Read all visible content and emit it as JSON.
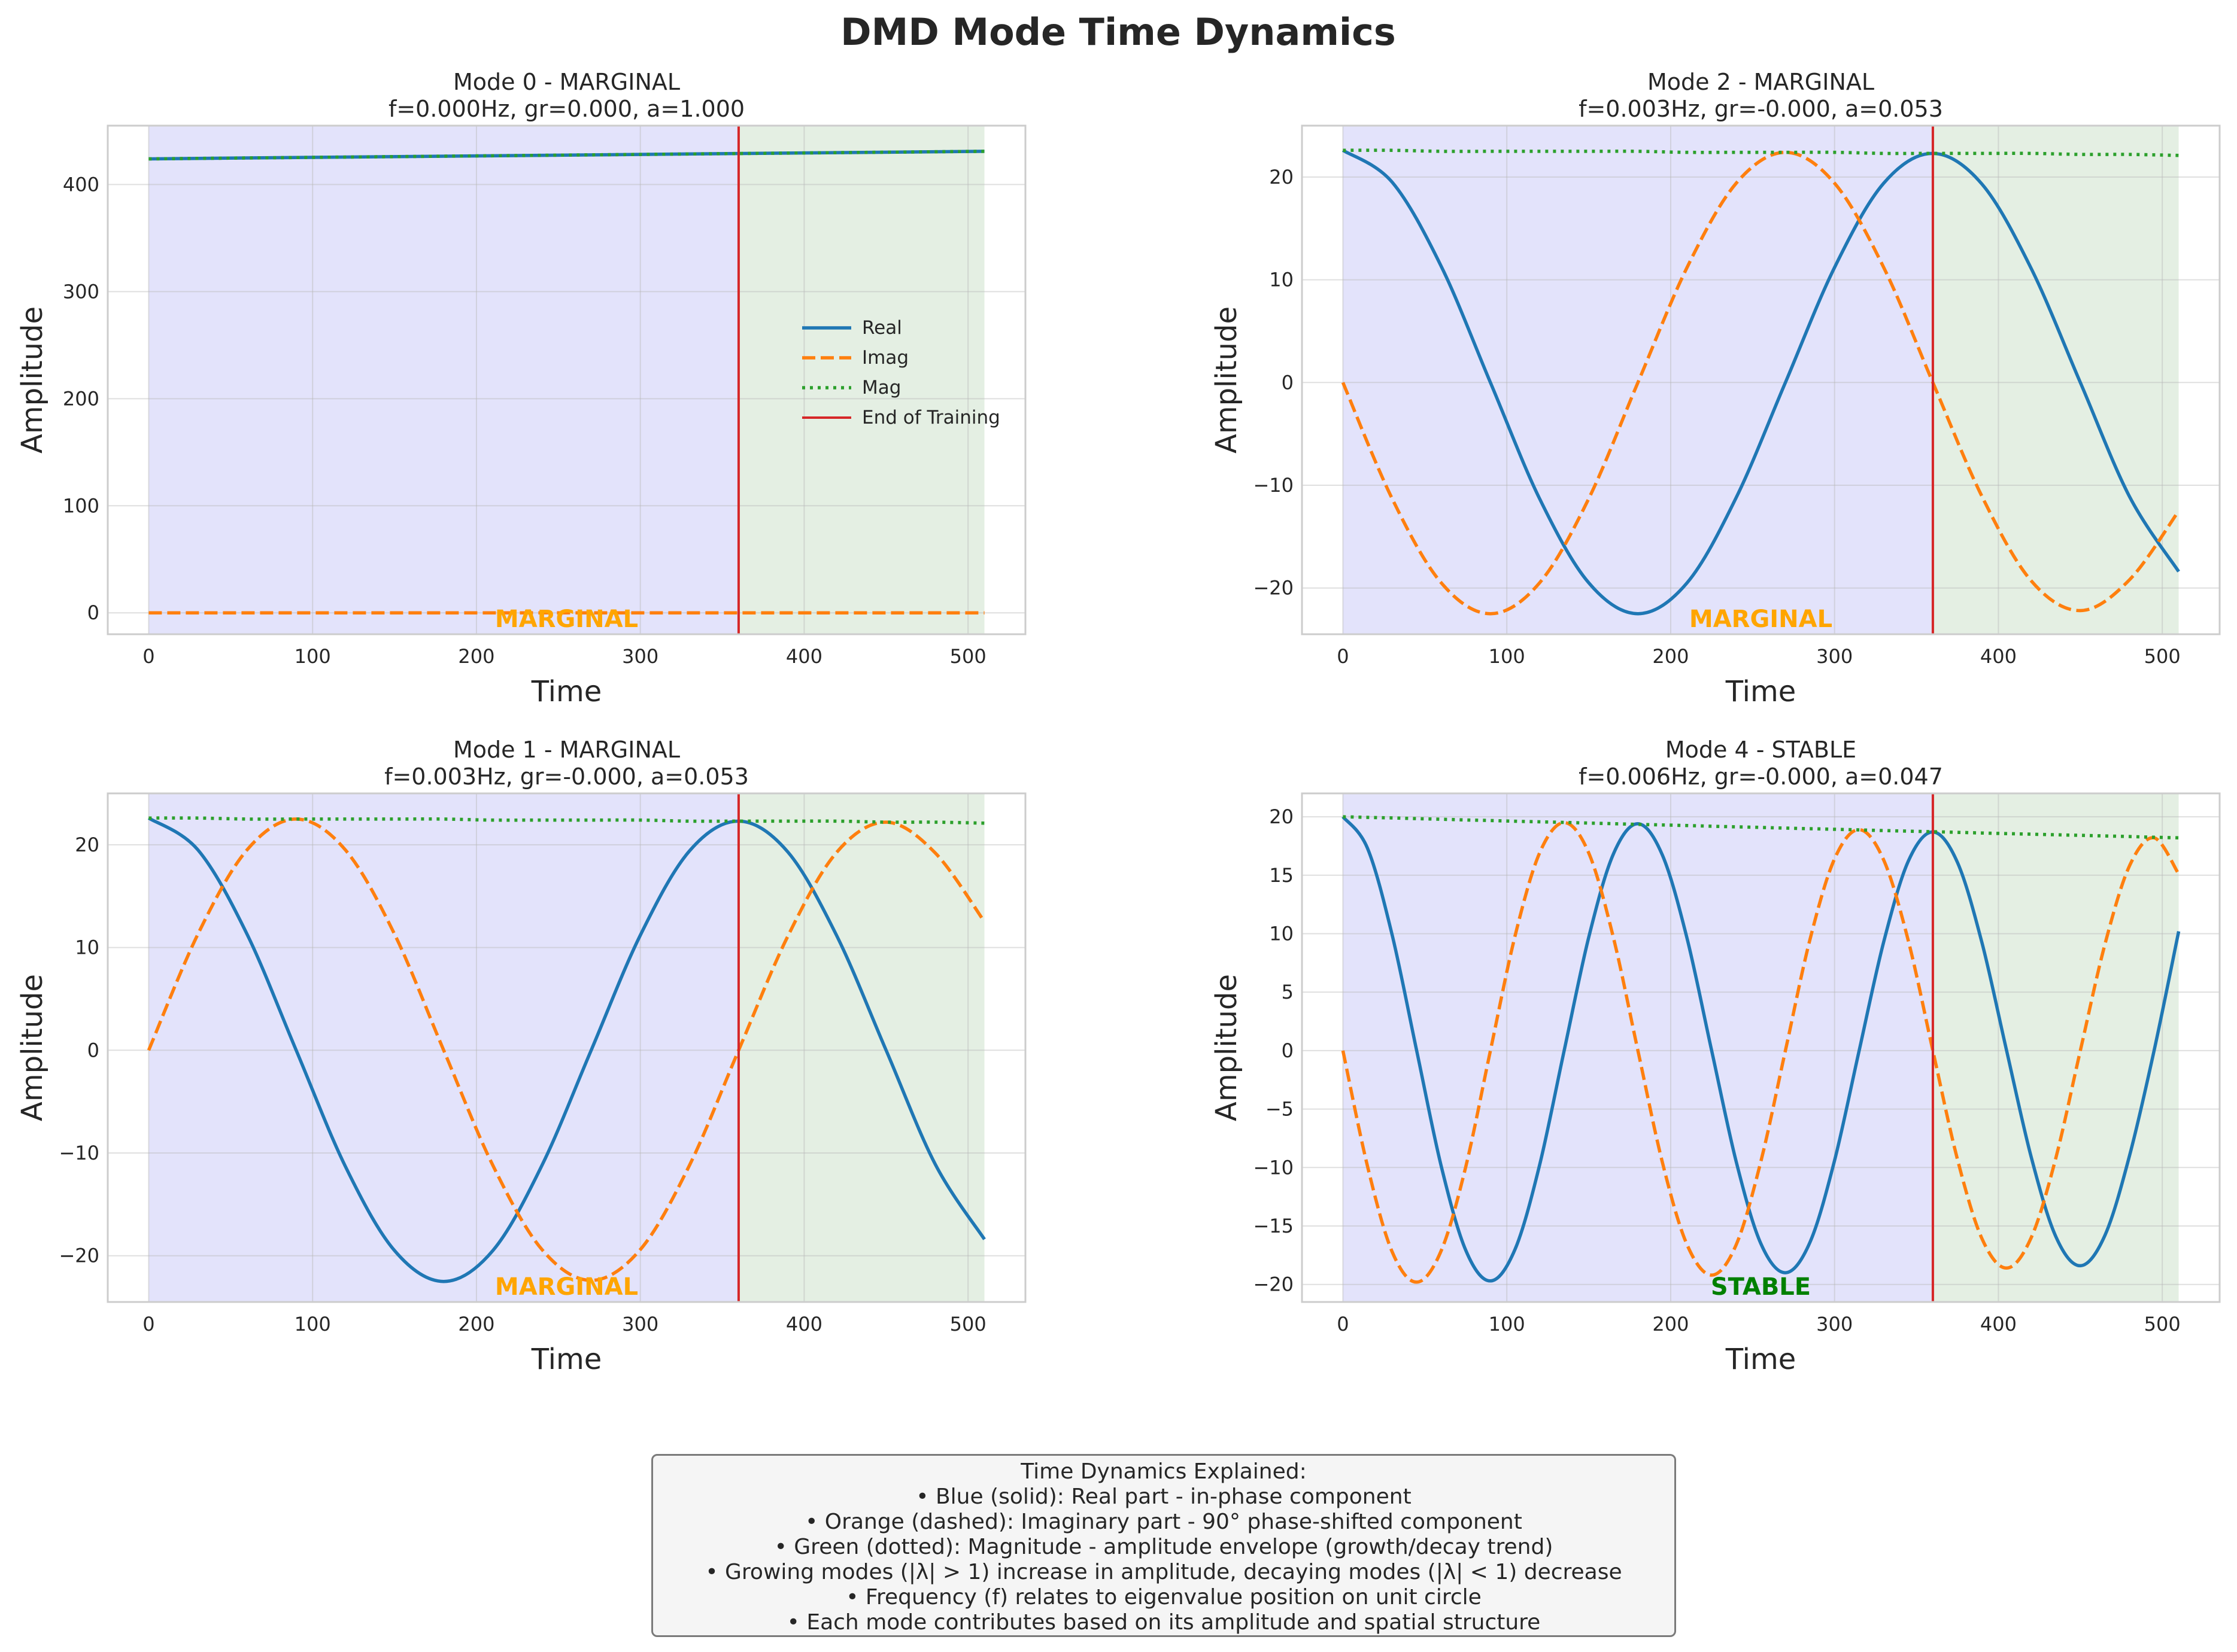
{
  "figure_title": "DMD Mode Time Dynamics",
  "colors": {
    "real": "#1f77b4",
    "imag": "#ff7f0e",
    "mag": "#2ca02c",
    "training_line": "#d62728",
    "train_region": "#e3e3fb",
    "forecast_region": "#e4efe3",
    "marginal_label": "#ffa500",
    "stable_label": "#008000"
  },
  "explanation": {
    "lines": [
      "Time Dynamics Explained:",
      "• Blue (solid): Real part - in-phase component",
      "• Orange (dashed): Imaginary part - 90° phase-shifted component",
      "• Green (dotted): Magnitude - amplitude envelope (growth/decay trend)",
      "• Growing modes (|λ| > 1) increase in amplitude, decaying modes (|λ| < 1) decrease",
      "• Frequency (f) relates to eigenvalue position on unit circle",
      "• Each mode contributes based on its amplitude and spatial structure"
    ]
  },
  "chart_data": [
    {
      "type": "line",
      "title": "Mode 0 - MARGINAL",
      "subtitle": "f=0.000Hz, gr=0.000, a=1.000",
      "xlabel": "Time",
      "ylabel": "Amplitude",
      "xlim": [
        -25,
        535
      ],
      "ylim": [
        -20,
        455
      ],
      "xticks": [
        0,
        100,
        200,
        300,
        400,
        500
      ],
      "yticks": [
        0,
        100,
        200,
        300,
        400
      ],
      "grid": true,
      "training_end": 360,
      "series_x": [
        0,
        510
      ],
      "series": [
        {
          "name": "Real",
          "style": "solid",
          "color": "#1f77b4",
          "values": [
            424,
            431
          ]
        },
        {
          "name": "Imag",
          "style": "dashed",
          "color": "#ff7f0e",
          "values": [
            0,
            0
          ]
        },
        {
          "name": "Mag",
          "style": "dotted",
          "color": "#2ca02c",
          "values": [
            424,
            431
          ]
        }
      ],
      "status_label": "MARGINAL",
      "legend": {
        "position": "center-right",
        "entries": [
          "Real",
          "Imag",
          "Mag",
          "End of Training"
        ]
      }
    },
    {
      "type": "line",
      "title": "Mode 2 - MARGINAL",
      "subtitle": "f=0.003Hz, gr=-0.000, a=0.053",
      "xlabel": "Time",
      "ylabel": "Amplitude",
      "xlim": [
        -25,
        535
      ],
      "ylim": [
        -24.5,
        25
      ],
      "xticks": [
        0,
        100,
        200,
        300,
        400,
        500
      ],
      "yticks": [
        -20,
        -10,
        0,
        10,
        20
      ],
      "grid": true,
      "training_end": 360,
      "series_x": [
        0,
        30,
        60,
        90,
        120,
        150,
        180,
        210,
        240,
        270,
        300,
        330,
        360,
        390,
        420,
        450,
        480,
        510
      ],
      "series": [
        {
          "name": "Real",
          "style": "solid",
          "color": "#1f77b4",
          "values": [
            22.6,
            19.5,
            11.3,
            0.0,
            -11.3,
            -19.5,
            -22.5,
            -19.5,
            -11.2,
            0.0,
            11.2,
            19.4,
            22.3,
            19.3,
            11.1,
            0.0,
            -11.1,
            -18.4
          ]
        },
        {
          "name": "Imag",
          "style": "dashed",
          "color": "#ff7f0e",
          "values": [
            0.0,
            -11.3,
            -19.5,
            -22.5,
            -19.5,
            -11.3,
            0.0,
            11.2,
            19.4,
            22.4,
            19.4,
            11.2,
            0.0,
            -11.1,
            -19.3,
            -22.2,
            -19.2,
            -12.5
          ]
        },
        {
          "name": "Mag",
          "style": "dotted",
          "color": "#2ca02c",
          "values": [
            22.6,
            22.6,
            22.5,
            22.5,
            22.5,
            22.5,
            22.5,
            22.4,
            22.4,
            22.4,
            22.4,
            22.3,
            22.3,
            22.3,
            22.3,
            22.2,
            22.2,
            22.1
          ]
        }
      ],
      "status_label": "MARGINAL"
    },
    {
      "type": "line",
      "title": "Mode 1 - MARGINAL",
      "subtitle": "f=0.003Hz, gr=-0.000, a=0.053",
      "xlabel": "Time",
      "ylabel": "Amplitude",
      "xlim": [
        -25,
        535
      ],
      "ylim": [
        -24.5,
        25
      ],
      "xticks": [
        0,
        100,
        200,
        300,
        400,
        500
      ],
      "yticks": [
        -20,
        -10,
        0,
        10,
        20
      ],
      "grid": true,
      "training_end": 360,
      "series_x": [
        0,
        30,
        60,
        90,
        120,
        150,
        180,
        210,
        240,
        270,
        300,
        330,
        360,
        390,
        420,
        450,
        480,
        510
      ],
      "series": [
        {
          "name": "Real",
          "style": "solid",
          "color": "#1f77b4",
          "values": [
            22.6,
            19.5,
            11.3,
            0.0,
            -11.3,
            -19.5,
            -22.5,
            -19.5,
            -11.2,
            0.0,
            11.2,
            19.4,
            22.3,
            19.3,
            11.1,
            0.0,
            -11.1,
            -18.4
          ]
        },
        {
          "name": "Imag",
          "style": "dashed",
          "color": "#ff7f0e",
          "values": [
            0.0,
            11.3,
            19.5,
            22.5,
            19.5,
            11.3,
            0.0,
            -11.2,
            -19.4,
            -22.4,
            -19.4,
            -11.2,
            0.0,
            11.1,
            19.3,
            22.2,
            19.2,
            12.5
          ]
        },
        {
          "name": "Mag",
          "style": "dotted",
          "color": "#2ca02c",
          "values": [
            22.6,
            22.6,
            22.5,
            22.5,
            22.5,
            22.5,
            22.5,
            22.4,
            22.4,
            22.4,
            22.4,
            22.3,
            22.3,
            22.3,
            22.3,
            22.2,
            22.2,
            22.1
          ]
        }
      ],
      "status_label": "MARGINAL"
    },
    {
      "type": "line",
      "title": "Mode 4 - STABLE",
      "subtitle": "f=0.006Hz, gr=-0.000, a=0.047",
      "xlabel": "Time",
      "ylabel": "Amplitude",
      "xlim": [
        -25,
        535
      ],
      "ylim": [
        -21.5,
        22
      ],
      "xticks": [
        0,
        100,
        200,
        300,
        400,
        500
      ],
      "yticks": [
        -20,
        -15,
        -10,
        -5,
        0,
        5,
        10,
        15,
        20
      ],
      "grid": true,
      "training_end": 360,
      "series_x": [
        0,
        15,
        30,
        45,
        60,
        75,
        90,
        105,
        120,
        135,
        150,
        165,
        180,
        195,
        210,
        225,
        240,
        255,
        270,
        285,
        300,
        315,
        330,
        345,
        360,
        375,
        390,
        405,
        420,
        435,
        450,
        465,
        480,
        495,
        510
      ],
      "series": [
        {
          "name": "Real",
          "style": "solid",
          "color": "#1f77b4",
          "values": [
            20.0,
            17.3,
            9.9,
            0.0,
            -9.9,
            -17.1,
            -19.7,
            -17.0,
            -9.8,
            0.0,
            9.7,
            16.8,
            19.4,
            16.7,
            9.6,
            0.0,
            -9.5,
            -16.5,
            -19.0,
            -16.4,
            -9.4,
            0.0,
            9.3,
            16.2,
            18.7,
            16.1,
            9.2,
            0.0,
            -9.1,
            -15.9,
            -18.4,
            -15.8,
            -9.0,
            0.0,
            10.2
          ]
        },
        {
          "name": "Imag",
          "style": "dashed",
          "color": "#ff7f0e",
          "values": [
            0.0,
            -9.9,
            -17.2,
            -19.8,
            -17.1,
            -9.9,
            0.0,
            9.8,
            16.9,
            19.5,
            16.9,
            9.7,
            0.0,
            -9.6,
            -16.6,
            -19.2,
            -16.6,
            -9.5,
            0.0,
            9.5,
            16.4,
            18.9,
            16.3,
            9.4,
            0.0,
            -9.3,
            -16.1,
            -18.6,
            -16.0,
            -9.2,
            0.0,
            9.1,
            15.8,
            18.2,
            15.1
          ]
        },
        {
          "name": "Mag",
          "style": "dotted",
          "color": "#2ca02c",
          "values": [
            20.0,
            19.95,
            19.9,
            19.84,
            19.79,
            19.73,
            19.68,
            19.62,
            19.57,
            19.52,
            19.46,
            19.41,
            19.35,
            19.3,
            19.25,
            19.19,
            19.14,
            19.09,
            19.03,
            18.98,
            18.93,
            18.88,
            18.82,
            18.77,
            18.72,
            18.67,
            18.61,
            18.56,
            18.51,
            18.46,
            18.41,
            18.36,
            18.31,
            18.25,
            18.2
          ]
        }
      ],
      "status_label": "STABLE"
    }
  ]
}
